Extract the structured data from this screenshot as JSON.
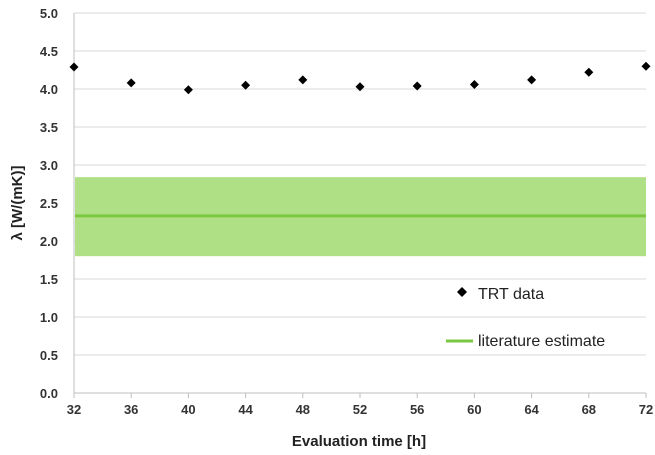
{
  "chart_data": {
    "type": "scatter",
    "xlabel": "Evaluation time [h]",
    "ylabel": "λ [W/(mK)]",
    "xlim": [
      32,
      72
    ],
    "ylim": [
      0.0,
      5.0
    ],
    "x_ticks": [
      "32",
      "36",
      "40",
      "44",
      "48",
      "52",
      "56",
      "60",
      "64",
      "68",
      "72"
    ],
    "y_ticks": [
      "0.0",
      "0.5",
      "1.0",
      "1.5",
      "2.0",
      "2.5",
      "3.0",
      "3.5",
      "4.0",
      "4.5",
      "5.0"
    ],
    "grid": {
      "horizontal": true,
      "vertical": false
    },
    "legend_position": "right",
    "series": [
      {
        "name": "TRT data",
        "marker": "diamond",
        "color": "#000000",
        "x": [
          32,
          36,
          40,
          44,
          48,
          52,
          56,
          60,
          64,
          68,
          72
        ],
        "y": [
          4.29,
          4.08,
          3.99,
          4.05,
          4.12,
          4.03,
          4.04,
          4.06,
          4.12,
          4.22,
          4.3
        ]
      },
      {
        "name": "literature estimate",
        "type": "band",
        "value": 2.33,
        "band_low": 1.8,
        "band_high": 2.84,
        "line_color": "#7cc843",
        "band_color": "#b0e085"
      }
    ]
  }
}
